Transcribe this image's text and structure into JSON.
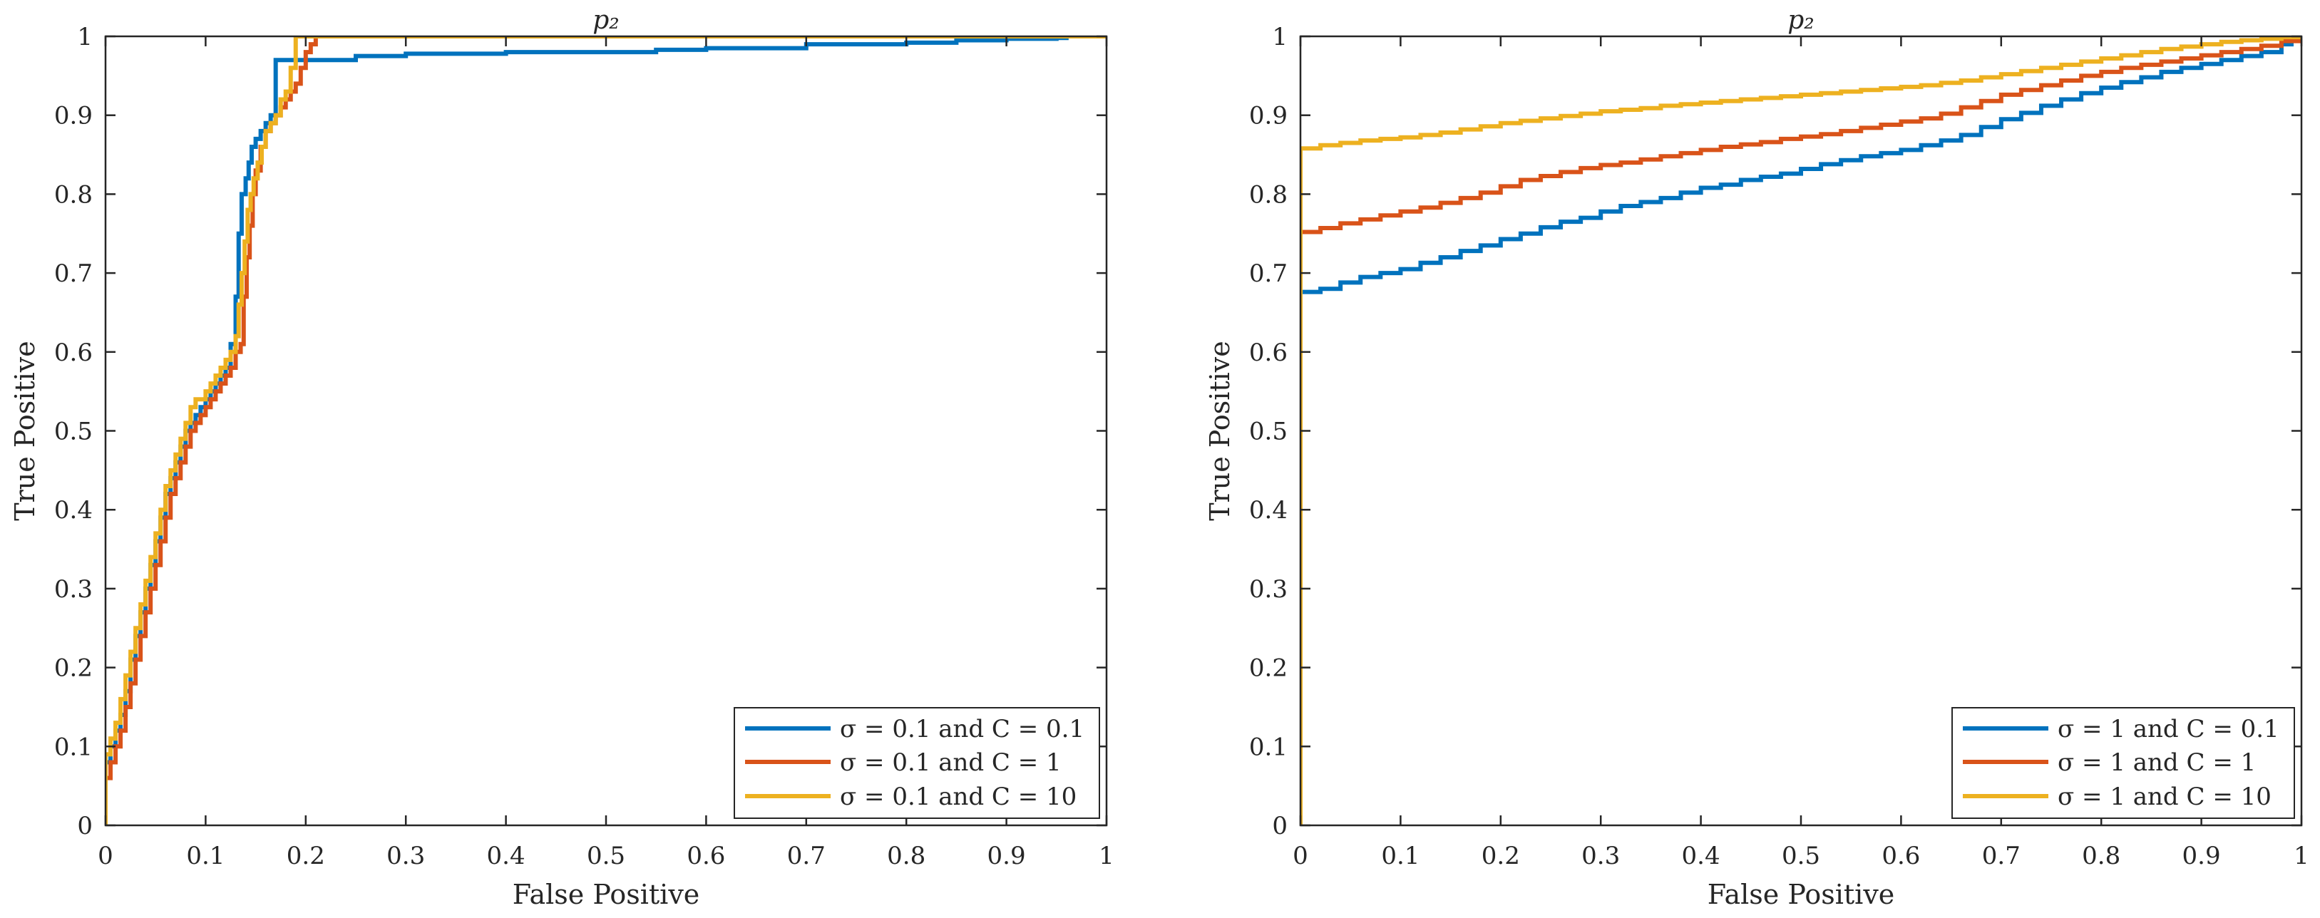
{
  "colors": {
    "blue": "#0072BD",
    "orange": "#D95319",
    "yellow": "#EDB120",
    "axis": "#262626"
  },
  "chart_data": [
    {
      "type": "line",
      "title": "p₂",
      "xlabel": "False Positive",
      "ylabel": "True Positive",
      "xlim": [
        0,
        1
      ],
      "ylim": [
        0,
        1
      ],
      "xticks": [
        "0",
        "0.1",
        "0.2",
        "0.3",
        "0.4",
        "0.5",
        "0.6",
        "0.7",
        "0.8",
        "0.9",
        "1"
      ],
      "yticks": [
        "0",
        "0.1",
        "0.2",
        "0.3",
        "0.4",
        "0.5",
        "0.6",
        "0.7",
        "0.8",
        "0.9",
        "1"
      ],
      "legend_position": "bottom-right",
      "series": [
        {
          "name": "σ = 0.1 and C = 0.1",
          "color": "#0072BD",
          "x": [
            0,
            0,
            0.005,
            0.01,
            0.015,
            0.02,
            0.025,
            0.03,
            0.035,
            0.04,
            0.045,
            0.05,
            0.055,
            0.06,
            0.065,
            0.07,
            0.075,
            0.08,
            0.085,
            0.09,
            0.095,
            0.1,
            0.105,
            0.11,
            0.115,
            0.12,
            0.125,
            0.13,
            0.133,
            0.136,
            0.14,
            0.143,
            0.146,
            0.15,
            0.155,
            0.16,
            0.165,
            0.17,
            0.175,
            0.18,
            0.185,
            0.19,
            0.195,
            0.2,
            0.25,
            0.3,
            0.35,
            0.4,
            0.5,
            0.55,
            0.6,
            0.7,
            0.75,
            0.8,
            0.85,
            0.9,
            0.95,
            0.96,
            1
          ],
          "y": [
            0,
            0.08,
            0.1,
            0.12,
            0.14,
            0.17,
            0.21,
            0.24,
            0.27,
            0.3,
            0.33,
            0.36,
            0.39,
            0.42,
            0.44,
            0.46,
            0.48,
            0.5,
            0.51,
            0.52,
            0.53,
            0.54,
            0.55,
            0.56,
            0.57,
            0.58,
            0.61,
            0.67,
            0.75,
            0.8,
            0.82,
            0.84,
            0.86,
            0.87,
            0.88,
            0.89,
            0.9,
            0.97,
            0.97,
            0.97,
            0.97,
            0.97,
            0.97,
            0.97,
            0.975,
            0.978,
            0.978,
            0.98,
            0.98,
            0.983,
            0.985,
            0.99,
            0.99,
            0.992,
            0.995,
            0.997,
            0.998,
            1,
            1
          ]
        },
        {
          "name": "σ = 0.1 and C = 1",
          "color": "#D95319",
          "x": [
            0,
            0,
            0.005,
            0.01,
            0.015,
            0.02,
            0.025,
            0.03,
            0.035,
            0.04,
            0.045,
            0.05,
            0.055,
            0.06,
            0.065,
            0.07,
            0.075,
            0.08,
            0.085,
            0.09,
            0.095,
            0.1,
            0.105,
            0.11,
            0.115,
            0.12,
            0.125,
            0.13,
            0.135,
            0.138,
            0.141,
            0.144,
            0.147,
            0.15,
            0.155,
            0.16,
            0.165,
            0.17,
            0.175,
            0.18,
            0.185,
            0.19,
            0.195,
            0.2,
            0.205,
            0.21,
            0.25,
            0.3,
            0.5,
            0.7,
            0.9,
            1
          ],
          "y": [
            0,
            0.06,
            0.08,
            0.1,
            0.12,
            0.15,
            0.18,
            0.21,
            0.24,
            0.27,
            0.3,
            0.33,
            0.36,
            0.39,
            0.42,
            0.44,
            0.46,
            0.48,
            0.5,
            0.51,
            0.52,
            0.53,
            0.54,
            0.55,
            0.56,
            0.57,
            0.58,
            0.6,
            0.61,
            0.67,
            0.72,
            0.76,
            0.8,
            0.83,
            0.86,
            0.88,
            0.89,
            0.9,
            0.91,
            0.92,
            0.93,
            0.94,
            0.96,
            0.98,
            0.99,
            1,
            1,
            1,
            1,
            1,
            1,
            1
          ]
        },
        {
          "name": "σ = 0.1 and C = 10",
          "color": "#EDB120",
          "x": [
            0,
            0,
            0.005,
            0.01,
            0.015,
            0.02,
            0.025,
            0.03,
            0.035,
            0.04,
            0.045,
            0.05,
            0.055,
            0.06,
            0.065,
            0.07,
            0.075,
            0.08,
            0.085,
            0.09,
            0.095,
            0.1,
            0.105,
            0.11,
            0.115,
            0.12,
            0.125,
            0.13,
            0.133,
            0.136,
            0.139,
            0.142,
            0.145,
            0.148,
            0.152,
            0.156,
            0.16,
            0.165,
            0.17,
            0.175,
            0.18,
            0.185,
            0.19,
            0.2,
            0.3,
            0.5,
            0.7,
            0.9,
            1
          ],
          "y": [
            0,
            0.09,
            0.11,
            0.13,
            0.16,
            0.19,
            0.22,
            0.25,
            0.28,
            0.31,
            0.34,
            0.37,
            0.4,
            0.43,
            0.45,
            0.47,
            0.49,
            0.51,
            0.53,
            0.54,
            0.54,
            0.55,
            0.56,
            0.57,
            0.58,
            0.59,
            0.6,
            0.62,
            0.66,
            0.7,
            0.74,
            0.78,
            0.8,
            0.82,
            0.84,
            0.86,
            0.88,
            0.89,
            0.9,
            0.92,
            0.93,
            0.96,
            1,
            1,
            1,
            1,
            1,
            1,
            1
          ]
        }
      ]
    },
    {
      "type": "line",
      "title": "p₂",
      "xlabel": "False Positive",
      "ylabel": "True Positive",
      "xlim": [
        0,
        1
      ],
      "ylim": [
        0,
        1
      ],
      "xticks": [
        "0",
        "0.1",
        "0.2",
        "0.3",
        "0.4",
        "0.5",
        "0.6",
        "0.7",
        "0.8",
        "0.9",
        "1"
      ],
      "yticks": [
        "0",
        "0.1",
        "0.2",
        "0.3",
        "0.4",
        "0.5",
        "0.6",
        "0.7",
        "0.8",
        "0.9",
        "1"
      ],
      "legend_position": "bottom-right",
      "series": [
        {
          "name": "σ = 1 and C = 0.1",
          "color": "#0072BD",
          "x": [
            0,
            0,
            0.02,
            0.04,
            0.06,
            0.08,
            0.1,
            0.12,
            0.14,
            0.16,
            0.18,
            0.2,
            0.22,
            0.24,
            0.26,
            0.28,
            0.3,
            0.32,
            0.34,
            0.36,
            0.38,
            0.4,
            0.42,
            0.44,
            0.46,
            0.48,
            0.5,
            0.52,
            0.54,
            0.56,
            0.58,
            0.6,
            0.62,
            0.64,
            0.66,
            0.68,
            0.7,
            0.72,
            0.74,
            0.76,
            0.78,
            0.8,
            0.82,
            0.84,
            0.86,
            0.88,
            0.9,
            0.92,
            0.94,
            0.96,
            0.98,
            0.99,
            1
          ],
          "y": [
            0,
            0.676,
            0.68,
            0.688,
            0.695,
            0.7,
            0.705,
            0.713,
            0.72,
            0.728,
            0.735,
            0.743,
            0.75,
            0.758,
            0.765,
            0.77,
            0.778,
            0.785,
            0.79,
            0.795,
            0.802,
            0.808,
            0.812,
            0.818,
            0.822,
            0.826,
            0.832,
            0.838,
            0.843,
            0.848,
            0.852,
            0.856,
            0.862,
            0.868,
            0.875,
            0.885,
            0.895,
            0.903,
            0.912,
            0.92,
            0.928,
            0.935,
            0.942,
            0.948,
            0.955,
            0.96,
            0.965,
            0.97,
            0.975,
            0.98,
            0.99,
            0.995,
            1
          ]
        },
        {
          "name": "σ = 1 and C = 1",
          "color": "#D95319",
          "x": [
            0,
            0,
            0.02,
            0.04,
            0.06,
            0.08,
            0.1,
            0.12,
            0.14,
            0.16,
            0.18,
            0.2,
            0.22,
            0.24,
            0.26,
            0.28,
            0.3,
            0.32,
            0.34,
            0.36,
            0.38,
            0.4,
            0.42,
            0.44,
            0.46,
            0.48,
            0.5,
            0.52,
            0.54,
            0.56,
            0.58,
            0.6,
            0.62,
            0.64,
            0.66,
            0.68,
            0.7,
            0.72,
            0.74,
            0.76,
            0.78,
            0.8,
            0.82,
            0.84,
            0.86,
            0.88,
            0.9,
            0.92,
            0.94,
            0.96,
            0.98,
            1
          ],
          "y": [
            0,
            0.752,
            0.757,
            0.763,
            0.768,
            0.773,
            0.778,
            0.783,
            0.789,
            0.795,
            0.802,
            0.81,
            0.818,
            0.823,
            0.828,
            0.833,
            0.837,
            0.84,
            0.844,
            0.848,
            0.852,
            0.856,
            0.86,
            0.863,
            0.866,
            0.87,
            0.873,
            0.876,
            0.88,
            0.884,
            0.888,
            0.892,
            0.896,
            0.902,
            0.91,
            0.918,
            0.926,
            0.932,
            0.938,
            0.944,
            0.95,
            0.955,
            0.96,
            0.964,
            0.968,
            0.972,
            0.976,
            0.98,
            0.984,
            0.988,
            0.994,
            1
          ]
        },
        {
          "name": "σ = 1 and C = 10",
          "color": "#EDB120",
          "x": [
            0,
            0,
            0.02,
            0.04,
            0.06,
            0.08,
            0.1,
            0.12,
            0.14,
            0.16,
            0.18,
            0.2,
            0.22,
            0.24,
            0.26,
            0.28,
            0.3,
            0.32,
            0.34,
            0.36,
            0.38,
            0.4,
            0.42,
            0.44,
            0.46,
            0.48,
            0.5,
            0.52,
            0.54,
            0.56,
            0.58,
            0.6,
            0.62,
            0.64,
            0.66,
            0.68,
            0.7,
            0.72,
            0.74,
            0.76,
            0.78,
            0.8,
            0.82,
            0.84,
            0.86,
            0.88,
            0.9,
            0.92,
            0.94,
            0.96,
            0.98,
            1
          ],
          "y": [
            0,
            0.858,
            0.862,
            0.865,
            0.868,
            0.87,
            0.872,
            0.875,
            0.878,
            0.882,
            0.886,
            0.89,
            0.893,
            0.896,
            0.899,
            0.902,
            0.905,
            0.907,
            0.909,
            0.912,
            0.914,
            0.916,
            0.918,
            0.92,
            0.922,
            0.924,
            0.926,
            0.928,
            0.93,
            0.932,
            0.934,
            0.936,
            0.938,
            0.941,
            0.944,
            0.948,
            0.952,
            0.956,
            0.96,
            0.964,
            0.968,
            0.972,
            0.976,
            0.98,
            0.984,
            0.987,
            0.99,
            0.993,
            0.995,
            0.997,
            0.999,
            1
          ]
        }
      ]
    }
  ]
}
